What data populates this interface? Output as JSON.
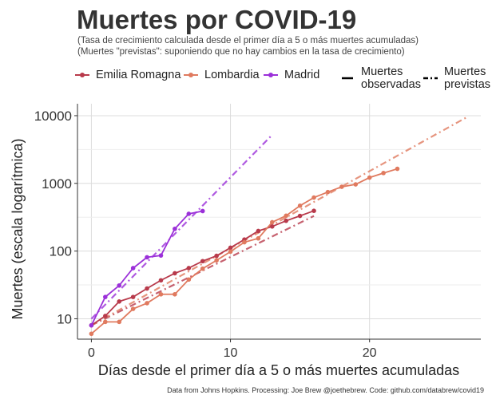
{
  "header": {
    "title": "Muertes por COVID-19",
    "subtitle_line1": "(Tasa de crecimiento calculada desde el primer día a 5 o más muertes acumuladas)",
    "subtitle_line2": "(Muertes \"previstas\": suponiendo que no hay cambios en la tasa de crecimiento)"
  },
  "legend": {
    "series": [
      {
        "name": "Emilia Romagna",
        "icon": "line-point"
      },
      {
        "name": "Lombardia",
        "icon": "line-point"
      },
      {
        "name": "Madrid",
        "icon": "line-point"
      }
    ],
    "observed_line1": "Muertes",
    "observed_line2": "observadas",
    "projected_line1": "Muertes",
    "projected_line2": "previstas"
  },
  "caption": "Data from Johns Hopkins. Processing: Joe Brew @joethebrew. Code: github.com/databrew/covid19",
  "chart_data": {
    "type": "line",
    "title": "Muertes por COVID-19",
    "xlabel": "Días desde el primer día a 5 o más muertes acumuladas",
    "ylabel": "Muertes (escala logarítmica)",
    "y_scale": "log10",
    "xlim": [
      -1,
      28
    ],
    "ylim": [
      5,
      15000
    ],
    "x_ticks": [
      0,
      10,
      20
    ],
    "x_tick_labels": [
      "0",
      "10",
      "20"
    ],
    "y_ticks": [
      10,
      100,
      1000,
      10000
    ],
    "y_tick_labels": [
      "10",
      "100",
      "1000",
      "10000"
    ],
    "grid": true,
    "legend_position": "top",
    "series": [
      {
        "name": "Emilia Romagna",
        "color": "#b83a4b",
        "x": [
          0,
          1,
          2,
          3,
          4,
          5,
          6,
          7,
          8,
          9,
          10,
          11,
          12,
          13,
          14,
          15,
          16
        ],
        "y": [
          8,
          11,
          18,
          21,
          28,
          37,
          47,
          56,
          71,
          85,
          112,
          148,
          198,
          231,
          280,
          331,
          393
        ],
        "projected": {
          "x": [
            0,
            16
          ],
          "y": [
            8,
            330
          ]
        }
      },
      {
        "name": "Lombardia",
        "color": "#e07a5f",
        "x": [
          0,
          1,
          2,
          3,
          4,
          5,
          6,
          7,
          8,
          9,
          10,
          11,
          12,
          13,
          14,
          15,
          16,
          17,
          18,
          19,
          20,
          21,
          22
        ],
        "y": [
          6,
          9,
          9,
          14,
          17,
          23,
          23,
          38,
          55,
          73,
          98,
          135,
          154,
          267,
          333,
          468,
          617,
          744,
          890,
          966,
          1218,
          1420,
          1640
        ],
        "projected": {
          "x": [
            0,
            27
          ],
          "y": [
            8,
            9500
          ]
        }
      },
      {
        "name": "Madrid",
        "color": "#9b30d9",
        "x": [
          0,
          1,
          2,
          3,
          4,
          5,
          6,
          7,
          8
        ],
        "y": [
          8,
          21,
          31,
          56,
          81,
          86,
          213,
          355,
          390
        ],
        "projected": {
          "x": [
            0,
            13
          ],
          "y": [
            10,
            5200
          ]
        }
      }
    ]
  }
}
